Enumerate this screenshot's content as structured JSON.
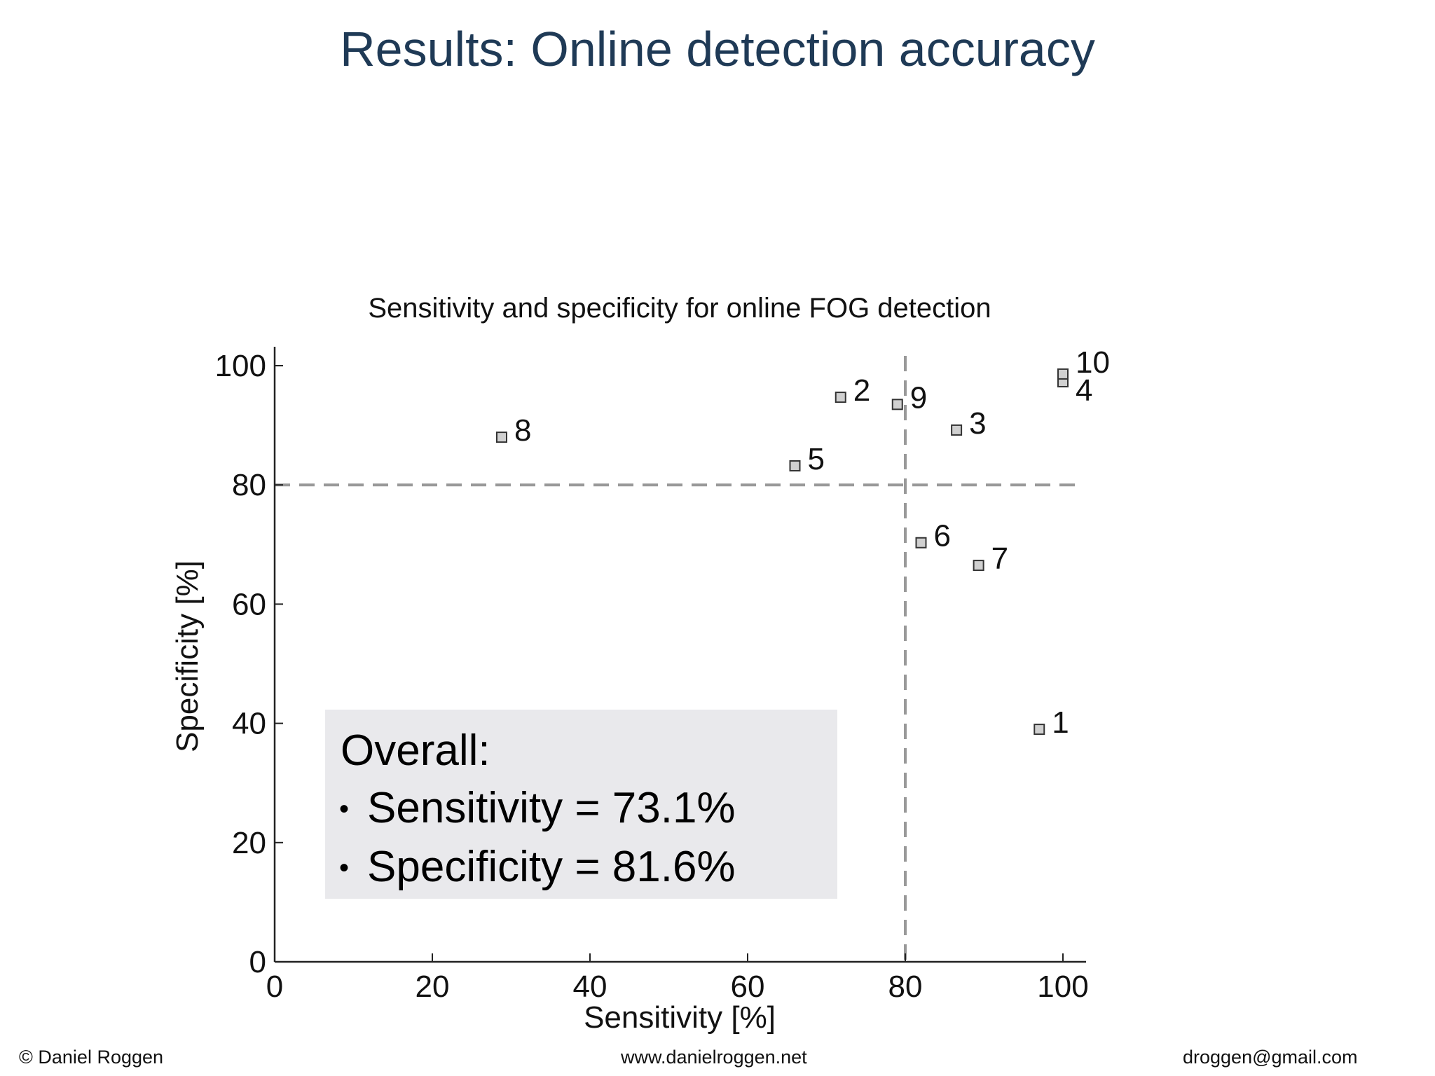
{
  "slide": {
    "title": "Results: Online detection accuracy"
  },
  "footer": {
    "author": "© Daniel Roggen",
    "website": "www.danielroggen.net",
    "email": "droggen@gmail.com"
  },
  "chart_data": {
    "type": "scatter",
    "title": "Sensitivity and specificity for online FOG detection",
    "xlabel": "Sensitivity [%]",
    "ylabel": "Specificity [%]",
    "xlim": [
      0,
      100
    ],
    "ylim": [
      0,
      100
    ],
    "xticks": [
      "0",
      "20",
      "40",
      "60",
      "80",
      "100"
    ],
    "yticks": [
      "0",
      "20",
      "40",
      "60",
      "80",
      "100"
    ],
    "grid": false,
    "reference_lines": {
      "x": 80,
      "y": 80,
      "style": "dashed",
      "color": "#999999"
    },
    "marker": {
      "shape": "square",
      "fill": "#d0d0d0",
      "stroke": "#333333"
    },
    "points": [
      {
        "label": "1",
        "x": 97,
        "y": 39
      },
      {
        "label": "2",
        "x": 71.8,
        "y": 94.7
      },
      {
        "label": "3",
        "x": 86.5,
        "y": 89.2
      },
      {
        "label": "4",
        "x": 100,
        "y": 97.3
      },
      {
        "label": "5",
        "x": 66,
        "y": 83.2
      },
      {
        "label": "6",
        "x": 82,
        "y": 70.3
      },
      {
        "label": "7",
        "x": 89.3,
        "y": 66.5
      },
      {
        "label": "8",
        "x": 28.8,
        "y": 88
      },
      {
        "label": "9",
        "x": 79,
        "y": 93.5
      },
      {
        "label": "10",
        "x": 100,
        "y": 98.6
      }
    ],
    "annotation": {
      "heading": "Overall:",
      "lines": [
        "Sensitivity = 73.1%",
        "Specificity = 81.6%"
      ],
      "background": "#e9e9ec"
    }
  }
}
